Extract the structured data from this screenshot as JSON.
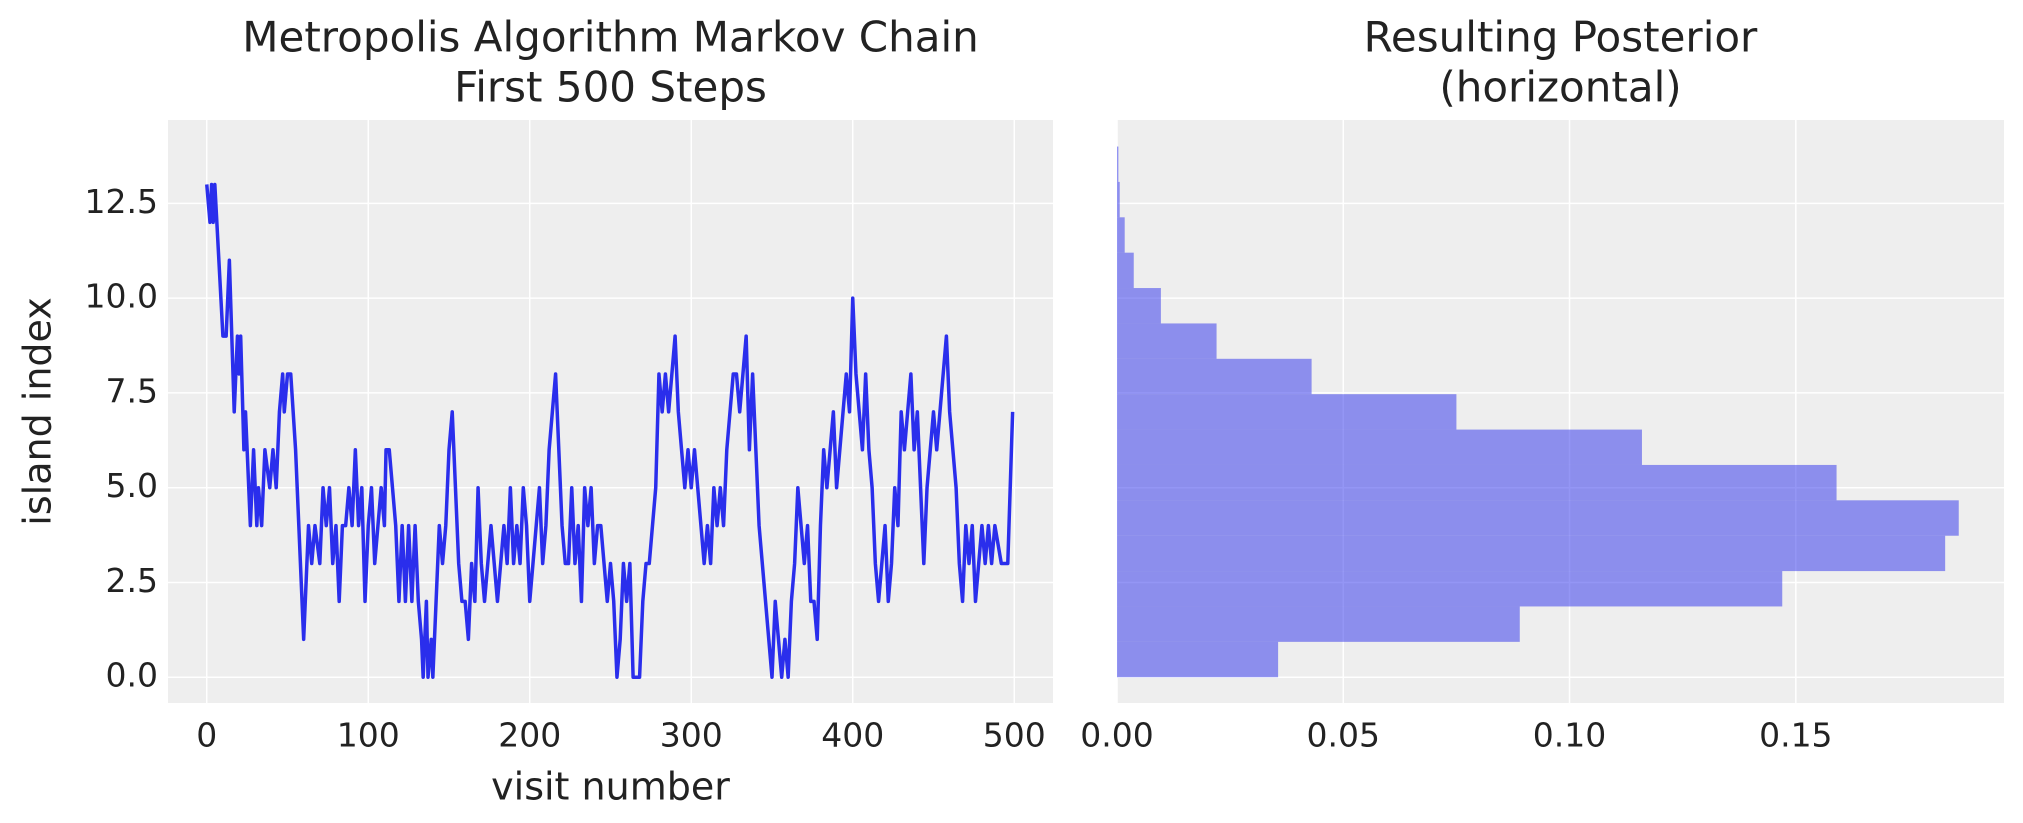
{
  "chart_data": [
    {
      "type": "line",
      "title": [
        "Metropolis Algorithm Markov Chain",
        "First 500 Steps"
      ],
      "xlabel": "visit number",
      "ylabel": "island index",
      "color": "#2a2eec",
      "x": [
        0,
        2,
        3,
        4,
        5,
        10,
        12,
        14,
        17,
        19,
        20,
        21,
        23,
        24,
        25,
        27,
        29,
        31,
        32,
        34,
        36,
        39,
        41,
        43,
        45,
        47,
        48,
        50,
        52,
        55,
        60,
        62,
        63,
        65,
        67,
        70,
        72,
        74,
        76,
        78,
        80,
        82,
        84,
        86,
        88,
        90,
        92,
        94,
        96,
        98,
        100,
        102,
        104,
        106,
        108,
        110,
        111,
        113,
        115,
        117,
        119,
        121,
        123,
        125,
        127,
        129,
        131,
        133,
        134,
        136,
        137,
        139,
        140,
        142,
        144,
        146,
        148,
        150,
        152,
        154,
        156,
        158,
        160,
        162,
        164,
        166,
        168,
        170,
        172,
        174,
        176,
        178,
        180,
        182,
        184,
        186,
        188,
        190,
        192,
        194,
        196,
        198,
        200,
        202,
        204,
        206,
        208,
        210,
        212,
        214,
        216,
        218,
        220,
        222,
        224,
        226,
        228,
        230,
        232,
        234,
        236,
        238,
        240,
        242,
        244,
        246,
        248,
        250,
        252,
        254,
        256,
        258,
        260,
        262,
        264,
        268,
        270,
        272,
        274,
        278,
        280,
        282,
        284,
        286,
        288,
        290,
        292,
        294,
        296,
        298,
        300,
        302,
        304,
        306,
        308,
        310,
        312,
        314,
        316,
        318,
        320,
        322,
        324,
        326,
        328,
        330,
        332,
        334,
        336,
        338,
        340,
        342,
        344,
        346,
        348,
        350,
        352,
        354,
        356,
        358,
        360,
        362,
        364,
        366,
        368,
        370,
        372,
        374,
        376,
        378,
        380,
        382,
        384,
        386,
        388,
        390,
        392,
        394,
        396,
        398,
        400,
        402,
        404,
        406,
        408,
        410,
        412,
        414,
        416,
        418,
        420,
        422,
        424,
        426,
        428,
        430,
        432,
        434,
        436,
        438,
        440,
        442,
        444,
        446,
        448,
        450,
        452,
        454,
        456,
        458,
        460,
        462,
        464,
        466,
        468,
        470,
        472,
        474,
        476,
        478,
        480,
        482,
        484,
        486,
        488,
        492,
        496,
        499
      ],
      "values": [
        13,
        12,
        13,
        12,
        13,
        9,
        9,
        11,
        7,
        9,
        8,
        9,
        6,
        7,
        6,
        4,
        6,
        4,
        5,
        4,
        6,
        5,
        6,
        5,
        7,
        8,
        7,
        8,
        8,
        6,
        1,
        3,
        4,
        3,
        4,
        3,
        5,
        4,
        5,
        3,
        4,
        2,
        4,
        4,
        5,
        4,
        6,
        4,
        5,
        2,
        4,
        5,
        3,
        4,
        5,
        4,
        6,
        6,
        5,
        4,
        2,
        4,
        2,
        4,
        2,
        4,
        2,
        1,
        0,
        2,
        0,
        1,
        0,
        2,
        4,
        3,
        4,
        6,
        7,
        5,
        3,
        2,
        2,
        1,
        3,
        2,
        5,
        3,
        2,
        3,
        4,
        3,
        2,
        3,
        4,
        3,
        5,
        3,
        4,
        3,
        5,
        4,
        2,
        3,
        4,
        5,
        3,
        4,
        6,
        7,
        8,
        6,
        4,
        3,
        3,
        5,
        3,
        4,
        2,
        5,
        4,
        5,
        3,
        4,
        4,
        3,
        2,
        3,
        2,
        0,
        1,
        3,
        2,
        3,
        0,
        0,
        2,
        3,
        3,
        5,
        8,
        7,
        8,
        7,
        8,
        9,
        7,
        6,
        5,
        6,
        5,
        6,
        5,
        4,
        3,
        4,
        3,
        5,
        4,
        5,
        4,
        6,
        7,
        8,
        8,
        7,
        8,
        9,
        6,
        8,
        6,
        4,
        3,
        2,
        1,
        0,
        2,
        1,
        0,
        1,
        0,
        2,
        3,
        5,
        4,
        3,
        4,
        2,
        2,
        1,
        4,
        6,
        5,
        6,
        7,
        5,
        6,
        7,
        8,
        7,
        10,
        8,
        7,
        6,
        8,
        6,
        5,
        3,
        2,
        3,
        4,
        2,
        3,
        5,
        4,
        7,
        6,
        7,
        8,
        6,
        7,
        5,
        3,
        5,
        6,
        7,
        6,
        7,
        8,
        9,
        7,
        6,
        5,
        3,
        2,
        4,
        3,
        4,
        2,
        3,
        4,
        3,
        4,
        3,
        4,
        3,
        3,
        7
      ],
      "xlim": [
        -24,
        524
      ],
      "ylim": [
        -0.68,
        14.7
      ],
      "xticks": [
        0,
        100,
        200,
        300,
        400,
        500
      ],
      "yticks": [
        {
          "value": 0,
          "label": "0.0"
        },
        {
          "value": 2.5,
          "label": "2.5"
        },
        {
          "value": 5,
          "label": "5.0"
        },
        {
          "value": 7.5,
          "label": "7.5"
        },
        {
          "value": 10,
          "label": "10.0"
        },
        {
          "value": 12.5,
          "label": "12.5"
        }
      ],
      "grid": true
    },
    {
      "type": "histogram",
      "orientation": "horizontal",
      "title": [
        "Resulting Posterior",
        "(horizontal)"
      ],
      "color": "#2a2eec",
      "alpha": 0.5,
      "bins": [
        0,
        0.933,
        1.867,
        2.8,
        3.733,
        4.667,
        5.6,
        6.533,
        7.467,
        8.4,
        9.333,
        10.267,
        11.2,
        12.133,
        13.067,
        14
      ],
      "values": [
        0.0356,
        0.089,
        0.147,
        0.183,
        0.186,
        0.159,
        0.116,
        0.075,
        0.043,
        0.022,
        0.0097,
        0.0037,
        0.0017,
        0.0006,
        0.0003
      ],
      "xlim": [
        0,
        0.196
      ],
      "ylim": [
        -0.68,
        14.7
      ],
      "xticks": [
        {
          "value": 0,
          "label": "0.00"
        },
        {
          "value": 0.05,
          "label": "0.05"
        },
        {
          "value": 0.1,
          "label": "0.10"
        },
        {
          "value": 0.15,
          "label": "0.15"
        }
      ],
      "grid": true
    }
  ]
}
